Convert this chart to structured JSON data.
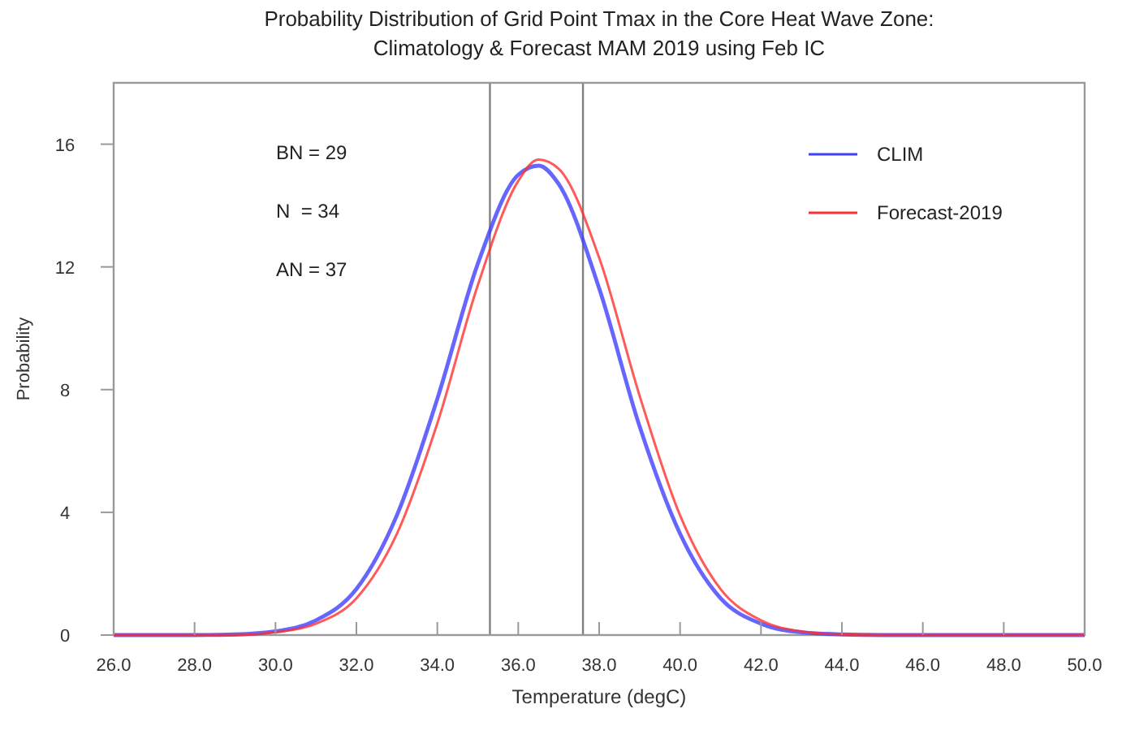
{
  "chart_data": {
    "type": "line",
    "title": "Probability Distribution of Grid Point Tmax in the Core Heat Wave Zone:",
    "subtitle": "Climatology & Forecast MAM 2019 using Feb IC",
    "xlabel": "Temperature (degC)",
    "ylabel": "Probability",
    "x": [
      26,
      27,
      28,
      29,
      30,
      31,
      32,
      33,
      34,
      35,
      36,
      36.5,
      37,
      38,
      39,
      40,
      41,
      42,
      43,
      44,
      45,
      46,
      47,
      48,
      49,
      50
    ],
    "series": [
      {
        "name": "CLIM",
        "color": "#4040ff",
        "values": [
          0,
          0,
          0,
          0.02,
          0.12,
          0.48,
          1.5,
          3.9,
          7.7,
          12.1,
          15,
          15.3,
          14.7,
          11.3,
          6.8,
          3.3,
          1.2,
          0.37,
          0.09,
          0.02,
          0,
          0,
          0,
          0,
          0,
          0
        ]
      },
      {
        "name": "Forecast-2019",
        "color": "#ff3030",
        "values": [
          0,
          0,
          0,
          0,
          0.09,
          0.37,
          1.2,
          3.3,
          6.9,
          11.4,
          14.8,
          15.5,
          15.2,
          12.3,
          7.8,
          3.9,
          1.5,
          0.48,
          0.12,
          0.02,
          0,
          0,
          0,
          0,
          0,
          0
        ]
      }
    ],
    "xlim": [
      26,
      50
    ],
    "xticks": [
      {
        "value": 26,
        "label": "26.0"
      },
      {
        "value": 28,
        "label": "28.0"
      },
      {
        "value": 30,
        "label": "30.0"
      },
      {
        "value": 32,
        "label": "32.0"
      },
      {
        "value": 34,
        "label": "34.0"
      },
      {
        "value": 36,
        "label": "36.0"
      },
      {
        "value": 38,
        "label": "38.0"
      },
      {
        "value": 40,
        "label": "40.0"
      },
      {
        "value": 42,
        "label": "42.0"
      },
      {
        "value": 44,
        "label": "44.0"
      },
      {
        "value": 46,
        "label": "46.0"
      },
      {
        "value": 48,
        "label": "48.0"
      },
      {
        "value": 50,
        "label": "50.0"
      }
    ],
    "ylim": [
      0,
      18
    ],
    "yticks": [
      0,
      4,
      8,
      12,
      16
    ],
    "ref_lines": [
      {
        "axis": "x",
        "value": 35.3,
        "color": "#808080"
      },
      {
        "axis": "x",
        "value": 37.6,
        "color": "#808080"
      }
    ],
    "annotations": [
      "BN = 29",
      "N  = 34",
      "AN = 37"
    ],
    "legend": "top right",
    "grid": false,
    "marker": "none",
    "line_style": "solid"
  }
}
